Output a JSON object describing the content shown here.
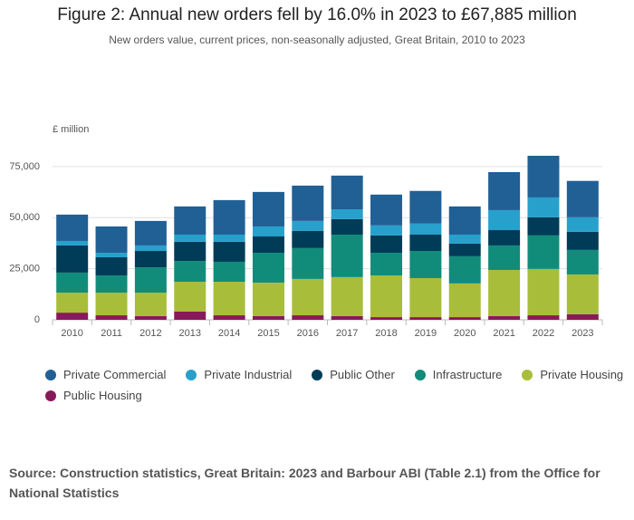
{
  "chart_data": {
    "type": "stacked_bar",
    "title": "Figure 2: Annual new orders fell by 16.0% in 2023 to £67,885 million",
    "subtitle": "New orders value, current prices, non-seasonally adjusted, Great Britain, 2010 to 2023",
    "y_label": "£ million",
    "source": "Source: Construction statistics, Great Britain: 2023 and Barbour ABI (Table 2.1) from the Office for National Statistics",
    "categories": [
      "2010",
      "2011",
      "2012",
      "2013",
      "2014",
      "2015",
      "2016",
      "2017",
      "2018",
      "2019",
      "2020",
      "2021",
      "2022",
      "2023"
    ],
    "series": [
      {
        "name": "Public Housing",
        "color": "#871a5b",
        "values": [
          3500,
          2200,
          1800,
          4000,
          2200,
          1800,
          2200,
          1800,
          1300,
          1300,
          1300,
          1800,
          2200,
          2700
        ]
      },
      {
        "name": "Private Housing",
        "color": "#a8bd3a",
        "values": [
          9800,
          11100,
          11500,
          14600,
          16400,
          16400,
          17800,
          19100,
          20400,
          19100,
          16500,
          22600,
          22700,
          19500
        ]
      },
      {
        "name": "Infrastructure",
        "color": "#118c7b",
        "values": [
          9800,
          8400,
          12400,
          10200,
          9800,
          14600,
          15100,
          20800,
          11100,
          13300,
          13300,
          12000,
          16400,
          12000
        ]
      },
      {
        "name": "Public Other",
        "color": "#003c57",
        "values": [
          13300,
          8900,
          8000,
          9400,
          9800,
          8000,
          8400,
          7600,
          8500,
          8000,
          6200,
          7500,
          8900,
          8900
        ]
      },
      {
        "name": "Private Industrial",
        "color": "#27a0cc",
        "values": [
          2200,
          2200,
          2700,
          3500,
          3500,
          4900,
          4900,
          4800,
          4900,
          5400,
          4400,
          9800,
          9700,
          7100
        ]
      },
      {
        "name": "Private Commercial",
        "color": "#206095",
        "values": [
          12900,
          12900,
          12000,
          13800,
          16900,
          16900,
          17300,
          16500,
          15100,
          16000,
          13800,
          18600,
          20400,
          17800
        ]
      }
    ],
    "legend_order": [
      5,
      4,
      3,
      2,
      1,
      0
    ],
    "ylim": [
      0,
      82500
    ],
    "yticks": [
      0,
      {
        "value": 25000,
        "label": "25,000"
      },
      {
        "value": 50000,
        "label": "50,000"
      },
      {
        "value": 75000,
        "label": "75,000"
      }
    ],
    "grid": true
  }
}
